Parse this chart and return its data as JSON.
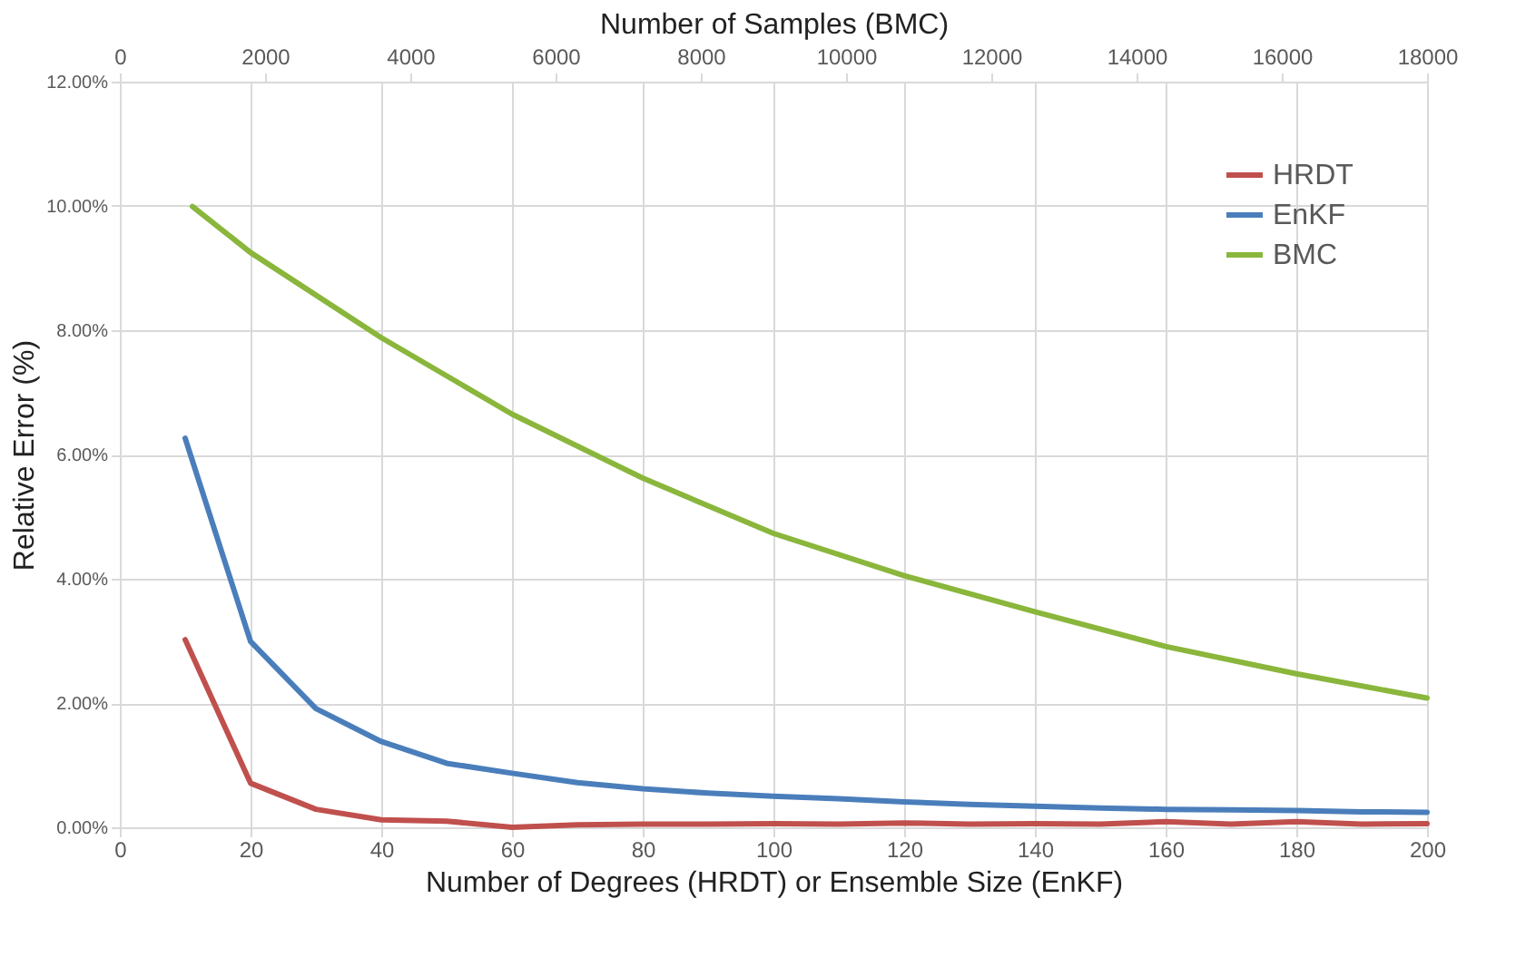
{
  "chart_data": {
    "type": "line",
    "xlabel": "Number of Degrees (HRDT) or Ensemble Size (EnKF)",
    "x2label": "Number of Samples (BMC)",
    "ylabel": "Relative Error (%)",
    "xlim": [
      0,
      200
    ],
    "xticks": [
      0,
      20,
      40,
      60,
      80,
      100,
      120,
      140,
      160,
      180,
      200
    ],
    "x2lim": [
      0,
      18000
    ],
    "x2ticks": [
      0,
      2000,
      4000,
      6000,
      8000,
      10000,
      12000,
      14000,
      16000,
      18000
    ],
    "ylim": [
      0,
      12
    ],
    "yticks": [
      {
        "value": 0,
        "label": "0.00%"
      },
      {
        "value": 2,
        "label": "2.00%"
      },
      {
        "value": 4,
        "label": "4.00%"
      },
      {
        "value": 6,
        "label": "6.00%"
      },
      {
        "value": 8,
        "label": "8.00%"
      },
      {
        "value": 10,
        "label": "10.00%"
      },
      {
        "value": 12,
        "label": "12.00%"
      }
    ],
    "grid": true,
    "legend": "top right",
    "marker": "none",
    "line_style": "solid",
    "series": [
      {
        "name": "HRDT",
        "color": "#c0504d",
        "x": [
          10,
          20,
          30,
          40,
          50,
          60,
          70,
          80,
          90,
          100,
          110,
          120,
          130,
          140,
          150,
          160,
          170,
          180,
          190,
          200
        ],
        "values": [
          3.02,
          0.71,
          0.29,
          0.12,
          0.1,
          0.0,
          0.04,
          0.05,
          0.05,
          0.06,
          0.05,
          0.07,
          0.05,
          0.06,
          0.05,
          0.09,
          0.05,
          0.09,
          0.05,
          0.06
        ]
      },
      {
        "name": "EnKF",
        "color": "#4a7ebb",
        "x": [
          10,
          20,
          30,
          40,
          50,
          60,
          70,
          80,
          90,
          100,
          110,
          120,
          130,
          140,
          150,
          160,
          170,
          180,
          190,
          200
        ],
        "values": [
          6.26,
          2.99,
          1.91,
          1.38,
          1.03,
          0.87,
          0.72,
          0.62,
          0.55,
          0.5,
          0.46,
          0.41,
          0.37,
          0.34,
          0.31,
          0.29,
          0.28,
          0.27,
          0.25,
          0.24
        ]
      },
      {
        "name": "BMC",
        "color": "#8ab63c",
        "axis": "x2",
        "x": [
          1000,
          1800,
          3600,
          5400,
          7200,
          9000,
          10800,
          12600,
          14400,
          16200,
          18000
        ],
        "values": [
          9.99,
          9.25,
          7.88,
          6.65,
          5.62,
          4.73,
          4.05,
          3.47,
          2.91,
          2.47,
          2.08
        ]
      }
    ]
  }
}
